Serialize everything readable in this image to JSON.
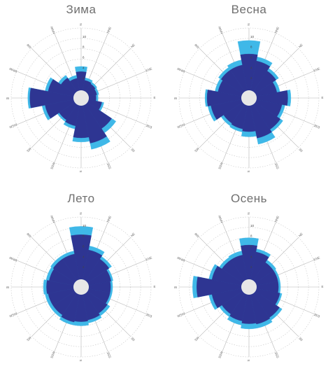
{
  "colors": {
    "outer": "#3fb8e8",
    "inner": "#2e3592",
    "center": "#e7e7e7"
  },
  "chart_data": [
    {
      "type": "polar-bar",
      "title": "Зима",
      "directions": [
        "N",
        "NNE",
        "NE",
        "ENE",
        "E",
        "ESE",
        "SE",
        "SSE",
        "S",
        "SSW",
        "SW",
        "WSW",
        "W",
        "WNW",
        "NW",
        "NNW"
      ],
      "ring_ticks": [
        2,
        4,
        6,
        8,
        10
      ],
      "rmax": 12,
      "series": [
        {
          "values": [
            4.6,
            2.5,
            2.2,
            2.0,
            1.8,
            3.0,
            6.6,
            8.6,
            7.0,
            4.6,
            4.0,
            6.2,
            8.8,
            5.6,
            3.8,
            3.0
          ]
        },
        {
          "values": [
            3.6,
            2.0,
            1.8,
            1.6,
            1.4,
            2.6,
            5.6,
            7.4,
            6.2,
            4.0,
            3.6,
            5.6,
            8.4,
            5.0,
            3.2,
            2.4
          ]
        }
      ]
    },
    {
      "type": "polar-bar",
      "title": "Весна",
      "directions": [
        "N",
        "NNE",
        "NE",
        "ENE",
        "E",
        "ESE",
        "SE",
        "SSE",
        "S",
        "SSW",
        "SW",
        "WSW",
        "W",
        "WNW",
        "NW",
        "NNW"
      ],
      "ring_ticks": [
        2,
        4,
        6,
        8,
        10
      ],
      "rmax": 12,
      "series": [
        {
          "values": [
            9.6,
            6.6,
            5.4,
            4.6,
            6.6,
            5.6,
            6.4,
            7.6,
            6.0,
            5.2,
            5.0,
            6.6,
            7.0,
            5.2,
            5.6,
            6.0
          ]
        },
        {
          "values": [
            7.0,
            5.8,
            4.8,
            4.0,
            6.0,
            5.0,
            5.8,
            6.4,
            5.0,
            4.6,
            4.4,
            6.0,
            6.6,
            4.6,
            5.0,
            5.0
          ]
        }
      ]
    },
    {
      "type": "polar-bar",
      "title": "Лето",
      "directions": [
        "N",
        "NNE",
        "NE",
        "ENE",
        "E",
        "ESE",
        "SE",
        "SSE",
        "S",
        "SSW",
        "SW",
        "WSW",
        "W",
        "WNW",
        "NW",
        "NNW"
      ],
      "ring_ticks": [
        2,
        4,
        6,
        8,
        10
      ],
      "rmax": 12,
      "series": [
        {
          "values": [
            10.2,
            6.6,
            5.6,
            4.8,
            4.6,
            4.6,
            5.2,
            5.6,
            6.0,
            6.0,
            5.6,
            5.6,
            5.8,
            5.4,
            5.6,
            5.6
          ]
        },
        {
          "values": [
            8.6,
            5.8,
            5.0,
            4.4,
            4.2,
            4.2,
            4.6,
            5.0,
            5.2,
            5.4,
            5.0,
            5.0,
            5.2,
            4.8,
            5.0,
            5.0
          ]
        }
      ]
    },
    {
      "type": "polar-bar",
      "title": "Осень",
      "directions": [
        "N",
        "NNE",
        "NE",
        "ENE",
        "E",
        "ESE",
        "SE",
        "SSE",
        "S",
        "SSW",
        "SW",
        "WSW",
        "W",
        "WNW",
        "NW",
        "NNW"
      ],
      "ring_ticks": [
        2,
        4,
        6,
        8,
        10
      ],
      "rmax": 12,
      "series": [
        {
          "values": [
            8.0,
            6.0,
            4.8,
            4.6,
            4.6,
            5.0,
            6.2,
            6.6,
            6.6,
            6.0,
            5.4,
            6.4,
            9.4,
            6.4,
            5.4,
            5.6
          ]
        },
        {
          "values": [
            6.6,
            5.4,
            4.2,
            4.2,
            4.2,
            4.6,
            5.6,
            5.8,
            5.6,
            5.2,
            4.8,
            5.8,
            8.6,
            5.8,
            4.8,
            4.8
          ]
        }
      ]
    }
  ]
}
